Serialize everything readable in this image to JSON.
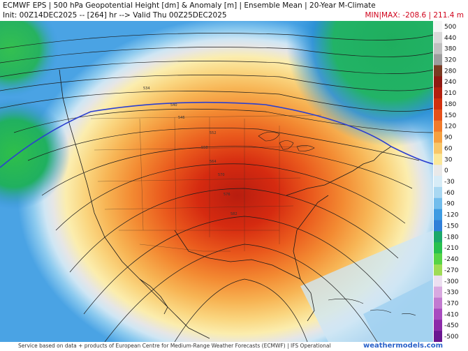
{
  "header": {
    "title": "ECMWF EPS | 500 hPa Geopotential Height [dm] & Anomaly [m] | Ensemble Mean | 20-Year M-Climate",
    "init_line": "Init: 00Z14DEC2025 -- [264] hr --> Valid Thu 00Z25DEC2025",
    "minmax": "MIN|MAX: -208.6 | 211.4 m"
  },
  "colorbar": {
    "labels": [
      "500",
      "440",
      "380",
      "320",
      "280",
      "240",
      "210",
      "180",
      "150",
      "120",
      "90",
      "60",
      "30",
      "0",
      "-30",
      "-60",
      "-90",
      "-120",
      "-150",
      "-180",
      "-210",
      "-240",
      "-270",
      "-300",
      "-330",
      "-370",
      "-410",
      "-450",
      "-500"
    ],
    "colors": [
      "#f5f5f5",
      "#d9d9d9",
      "#bfbfbf",
      "#9c9c9c",
      "#7a3b22",
      "#8f1a12",
      "#b3200f",
      "#d1300f",
      "#e5501a",
      "#f07a2a",
      "#f5a040",
      "#f8c76a",
      "#fbe89a",
      "#e9e9e9",
      "#d7ecf7",
      "#a9d8f2",
      "#72bdec",
      "#3d9be2",
      "#2f7fd8",
      "#1ba86a",
      "#27c04e",
      "#57d447",
      "#9fdc55",
      "#ecdff0",
      "#d9a9e0",
      "#c27ad0",
      "#a84bbf",
      "#8c2aa8",
      "#6a1790"
    ]
  },
  "contour_labels": [
    "534",
    "540",
    "546",
    "552",
    "558",
    "564",
    "570",
    "576",
    "582"
  ],
  "footer": {
    "credit": "Service based on data + products of European Centre for Medium-Range Weather Forecasts (ECMWF) | IFS Operational",
    "brand": "weathermodels.com"
  }
}
